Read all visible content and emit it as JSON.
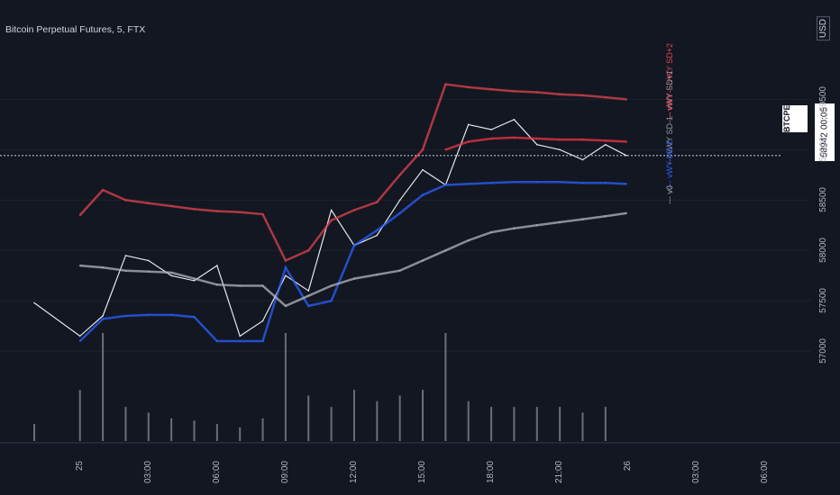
{
  "header": {
    "title": "Bitcoin Perpetual Futures, 5, FTX",
    "currency": "USD"
  },
  "symbol_tag": "BTCPERP",
  "last_price": "58942",
  "countdown": "00:05",
  "legend": [
    {
      "label": "vWY SD+2",
      "color": "#e0444c"
    },
    {
      "label": "vWY SD+1",
      "color": "#9598a1"
    },
    {
      "label": "vWY",
      "color": "#f23645"
    },
    {
      "label": "vWY SD-1",
      "color": "#9598a1"
    },
    {
      "label": "vWY SD-2",
      "color": "#2962ff"
    },
    {
      "label": "v0",
      "color": "#b2b5be"
    }
  ],
  "chart_data": {
    "type": "line",
    "title": "Bitcoin Perpetual Futures, 5, FTX",
    "ylim": [
      56600,
      59950
    ],
    "y_ticks": [
      57000,
      57500,
      58000,
      58500,
      59000,
      59500
    ],
    "x_ticks": [
      "25",
      "03:00",
      "06:00",
      "09:00",
      "12:00",
      "15:00",
      "18:00",
      "21:00",
      "26",
      "03:00",
      "06:00"
    ],
    "price_line": 58942,
    "series": [
      {
        "name": "BTCPERP",
        "color": "#e6e6e6",
        "x": [
          "24 22:00",
          "25 00:00",
          "25 01:00",
          "25 02:00",
          "25 03:00",
          "25 04:00",
          "25 05:00",
          "25 06:00",
          "25 07:00",
          "25 08:00",
          "25 09:00",
          "25 10:00",
          "25 11:00",
          "25 12:00",
          "25 13:00",
          "25 14:00",
          "25 15:00",
          "25 16:00",
          "25 17:00",
          "25 18:00",
          "25 19:00",
          "25 20:00",
          "25 21:00",
          "25 22:00",
          "25 23:00",
          "25 23:55"
        ],
        "values": [
          57480,
          57150,
          57350,
          57950,
          57900,
          57750,
          57700,
          57850,
          57150,
          57300,
          57750,
          57600,
          58400,
          58050,
          58150,
          58500,
          58800,
          58650,
          59250,
          59200,
          59300,
          59050,
          59000,
          58900,
          59050,
          58942
        ]
      },
      {
        "name": "vWY SD+2",
        "color": "#e0444c",
        "x": [
          "25 00:00",
          "25 01:00",
          "25 02:00",
          "25 03:00",
          "25 04:00",
          "25 05:00",
          "25 06:00",
          "25 07:00",
          "25 08:00",
          "25 09:00",
          "25 10:00",
          "25 11:00",
          "25 12:00",
          "25 13:00",
          "25 14:00",
          "25 15:00",
          "25 16:00",
          "25 17:00",
          "25 18:00",
          "25 19:00",
          "25 20:00",
          "25 21:00",
          "25 22:00",
          "25 23:00",
          "25 23:55"
        ],
        "values": [
          58350,
          58600,
          58500,
          58470,
          58440,
          58410,
          58390,
          58380,
          58360,
          57900,
          58000,
          58300,
          58400,
          58480,
          58750,
          59000,
          59650,
          59620,
          59600,
          59580,
          59570,
          59550,
          59540,
          59520,
          59500
        ]
      },
      {
        "name": "vWY",
        "color": "#f23645",
        "x": [
          "25 16:00",
          "25 17:00",
          "25 18:00",
          "25 19:00",
          "25 20:00",
          "25 21:00",
          "25 22:00",
          "25 23:00",
          "25 23:55"
        ],
        "values": [
          59000,
          59080,
          59110,
          59120,
          59110,
          59100,
          59100,
          59090,
          59080
        ]
      },
      {
        "name": "vWY SD-2",
        "color": "#2962ff",
        "x": [
          "25 00:00",
          "25 01:00",
          "25 02:00",
          "25 03:00",
          "25 04:00",
          "25 05:00",
          "25 06:00",
          "25 07:00",
          "25 08:00",
          "25 09:00",
          "25 10:00",
          "25 11:00",
          "25 12:00",
          "25 13:00",
          "25 14:00",
          "25 15:00",
          "25 16:00",
          "25 17:00",
          "25 18:00",
          "25 19:00",
          "25 20:00",
          "25 21:00",
          "25 22:00",
          "25 23:00",
          "25 23:55"
        ],
        "values": [
          57100,
          57320,
          57350,
          57360,
          57360,
          57340,
          57100,
          57100,
          57100,
          57830,
          57450,
          57500,
          58050,
          58200,
          58370,
          58550,
          58650,
          58660,
          58670,
          58680,
          58680,
          58680,
          58670,
          58670,
          58660
        ]
      },
      {
        "name": "v0",
        "color": "#b2b5be",
        "x": [
          "25 00:00",
          "25 01:00",
          "25 02:00",
          "25 03:00",
          "25 04:00",
          "25 05:00",
          "25 06:00",
          "25 07:00",
          "25 08:00",
          "25 09:00",
          "25 10:00",
          "25 11:00",
          "25 12:00",
          "25 13:00",
          "25 14:00",
          "25 15:00",
          "25 16:00",
          "25 17:00",
          "25 18:00",
          "25 19:00",
          "25 20:00",
          "25 21:00",
          "25 22:00",
          "25 23:00",
          "25 23:55"
        ],
        "values": [
          57850,
          57830,
          57800,
          57790,
          57780,
          57720,
          57660,
          57650,
          57650,
          57450,
          57550,
          57650,
          57720,
          57760,
          57800,
          57900,
          58000,
          58100,
          58180,
          58220,
          58250,
          58280,
          58310,
          58340,
          58370
        ]
      }
    ],
    "volume": {
      "x": [
        "24 22:00",
        "25 00:00",
        "25 01:00",
        "25 02:00",
        "25 03:00",
        "25 04:00",
        "25 05:00",
        "25 06:00",
        "25 07:00",
        "25 08:00",
        "25 09:00",
        "25 10:00",
        "25 11:00",
        "25 12:00",
        "25 13:00",
        "25 14:00",
        "25 15:00",
        "25 16:00",
        "25 17:00",
        "25 18:00",
        "25 19:00",
        "25 20:00",
        "25 21:00",
        "25 22:00",
        "25 23:00"
      ],
      "values": [
        15,
        45,
        95,
        30,
        25,
        20,
        18,
        15,
        12,
        20,
        95,
        40,
        30,
        45,
        35,
        40,
        45,
        95,
        35,
        30,
        30,
        30,
        30,
        25,
        30
      ]
    }
  }
}
